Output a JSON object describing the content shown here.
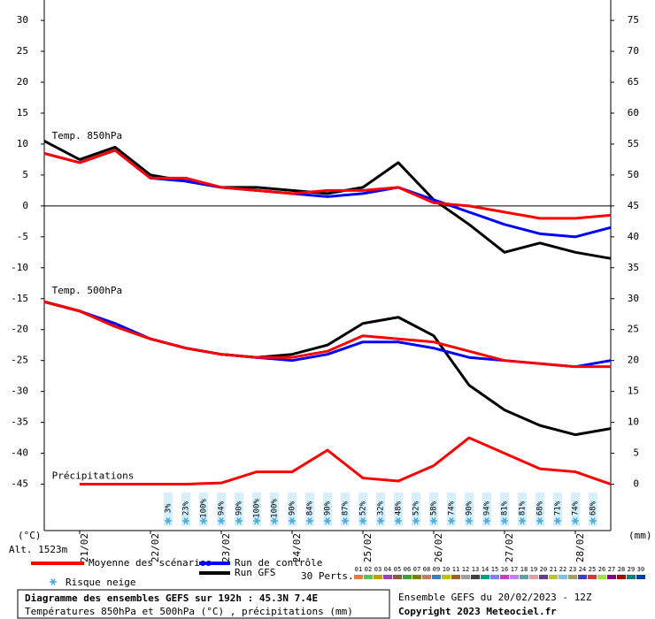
{
  "chart_data": {
    "type": "line",
    "title": "Diagramme des ensembles GEFS sur 192h : 45.3N 7.4E",
    "subtitle": "Températures 850hPa et 500hPa (°C) , précipitations (mm)",
    "run_info": "Ensemble GEFS du 20/02/2023 - 12Z",
    "copyright": "Copyright 2023 Meteociel.fr",
    "altitude": "Alt. 1523m",
    "y_unit": "(°C)",
    "y2_unit": "(mm)",
    "annotations": [
      {
        "text": "Temp. 850hPa",
        "x": 2,
        "y": 11
      },
      {
        "text": "Temp. 500hPa",
        "x": 2,
        "y": -14
      },
      {
        "text": "Précipitations",
        "x": 2,
        "y": -44
      }
    ],
    "x": [
      0,
      12,
      24,
      36,
      48,
      60,
      72,
      84,
      96,
      108,
      120,
      132,
      144,
      156,
      168,
      180,
      192
    ],
    "xlim": [
      0,
      192
    ],
    "xticks": [
      {
        "value": 12,
        "label": "21/02"
      },
      {
        "value": 36,
        "label": "22/02"
      },
      {
        "value": 60,
        "label": "23/02"
      },
      {
        "value": 84,
        "label": "24/02"
      },
      {
        "value": 108,
        "label": "25/02"
      },
      {
        "value": 132,
        "label": "26/02"
      },
      {
        "value": 156,
        "label": "27/02"
      },
      {
        "value": 180,
        "label": "28/02"
      }
    ],
    "ylim": [
      -52.5,
      33.3
    ],
    "yticks": [
      30,
      25,
      20,
      15,
      10,
      5,
      0,
      -5,
      -10,
      -15,
      -20,
      -25,
      -30,
      -35,
      -40,
      -45
    ],
    "y2lim": [
      -7.5,
      78.3
    ],
    "y2ticks": [
      75,
      70,
      65,
      60,
      55,
      50,
      45,
      40,
      35,
      30,
      25,
      20,
      15,
      10,
      5,
      0
    ],
    "zero_line": true,
    "series": [
      {
        "color": "#000000",
        "width": 3,
        "values": [
          10.5,
          7.5,
          9.5,
          5,
          4,
          3,
          3,
          2.5,
          2,
          3,
          7,
          1,
          -3,
          -7.5,
          -6,
          -7.5,
          -8.5
        ]
      },
      {
        "color": "#0000ff",
        "width": 3,
        "values": [
          8.5,
          7,
          9,
          4.5,
          4,
          3,
          2.5,
          2,
          1.5,
          2,
          3,
          1,
          -1,
          -3,
          -4.5,
          -5,
          -3.5
        ]
      },
      {
        "color": "#ff0000",
        "width": 3,
        "values": [
          8.5,
          7,
          9,
          4.5,
          4.5,
          3,
          2.5,
          2,
          2.5,
          2.5,
          3,
          0.5,
          0,
          -1,
          -2,
          -2,
          -1.5
        ]
      },
      {
        "color": "#000000",
        "width": 3,
        "values": [
          -15.5,
          -17,
          -19.5,
          -21.5,
          -23,
          -24,
          -24.5,
          -24,
          -22.5,
          -19,
          -18,
          -21,
          -29,
          -33,
          -35.5,
          -37,
          -36
        ]
      },
      {
        "color": "#0000ff",
        "width": 3,
        "values": [
          -15.5,
          -17,
          -19,
          -21.5,
          -23,
          -24,
          -24.5,
          -25,
          -24,
          -22,
          -22,
          -23,
          -24.5,
          -25,
          -25.5,
          -26,
          -25
        ]
      },
      {
        "color": "#ff0000",
        "width": 3,
        "values": [
          -15.5,
          -17,
          -19.5,
          -21.5,
          -23,
          -24,
          -24.5,
          -24.5,
          -23.5,
          -21,
          -21.5,
          -22,
          -23.5,
          -25,
          -25.5,
          -26,
          -26
        ]
      },
      {
        "color": "#ff0000",
        "width": 3,
        "axis": "y2",
        "values": [
          null,
          0,
          0,
          0,
          0,
          0.2,
          2,
          2,
          5.5,
          1,
          0.5,
          3,
          7.5,
          5,
          2.5,
          2,
          0
        ]
      }
    ],
    "legend": [
      {
        "name": "Moyenne des scénarios",
        "color": "#ff0000"
      },
      {
        "name": "Run de contrôle",
        "color": "#0000ff"
      },
      {
        "name": "Run GFS",
        "color": "#000000"
      }
    ],
    "snow_risk": {
      "name": "Risque neige",
      "x": [
        42,
        48,
        54,
        60,
        66,
        72,
        78,
        84,
        90,
        96,
        102,
        108,
        114,
        120,
        126,
        132,
        138,
        144,
        150,
        156,
        162,
        168,
        174,
        180,
        186
      ],
      "values": [
        3,
        23,
        100,
        94,
        90,
        100,
        100,
        90,
        84,
        90,
        87,
        52,
        32,
        48,
        52,
        58,
        74,
        90,
        94,
        81,
        81,
        68,
        71,
        74,
        68
      ],
      "value_labels": [
        "3%",
        "23%",
        "100%",
        "94%",
        "90%",
        "100%",
        "100%",
        "90%",
        "84%",
        "90%",
        "87%",
        "52%",
        "32%",
        "48%",
        "52%",
        "58%",
        "74%",
        "90%",
        "94%",
        "81%",
        "81%",
        "68%",
        "71%",
        "74%",
        "68%"
      ]
    },
    "perturbations": {
      "title": "30 Perts.",
      "labels": [
        "01",
        "02",
        "03",
        "04",
        "05",
        "06",
        "07",
        "08",
        "09",
        "10",
        "11",
        "12",
        "13",
        "14",
        "15",
        "16",
        "17",
        "18",
        "19",
        "20",
        "21",
        "22",
        "23",
        "24",
        "25",
        "26",
        "27",
        "28",
        "29",
        "30"
      ],
      "colors": [
        "#e08040",
        "#60c060",
        "#c0a000",
        "#a040c0",
        "#806040",
        "#40a040",
        "#808000",
        "#c08060",
        "#4080c0",
        "#c0c000",
        "#a06020",
        "#a0a0a0",
        "#404040",
        "#00a080",
        "#8080ff",
        "#c040c0",
        "#c080ff",
        "#60a0a0",
        "#e0a0a0",
        "#604080",
        "#c0c040",
        "#80c0e0",
        "#a0a060",
        "#4040c0",
        "#c04040",
        "#a0e040",
        "#800080",
        "#a00000",
        "#008080",
        "#0040a0"
      ]
    }
  }
}
